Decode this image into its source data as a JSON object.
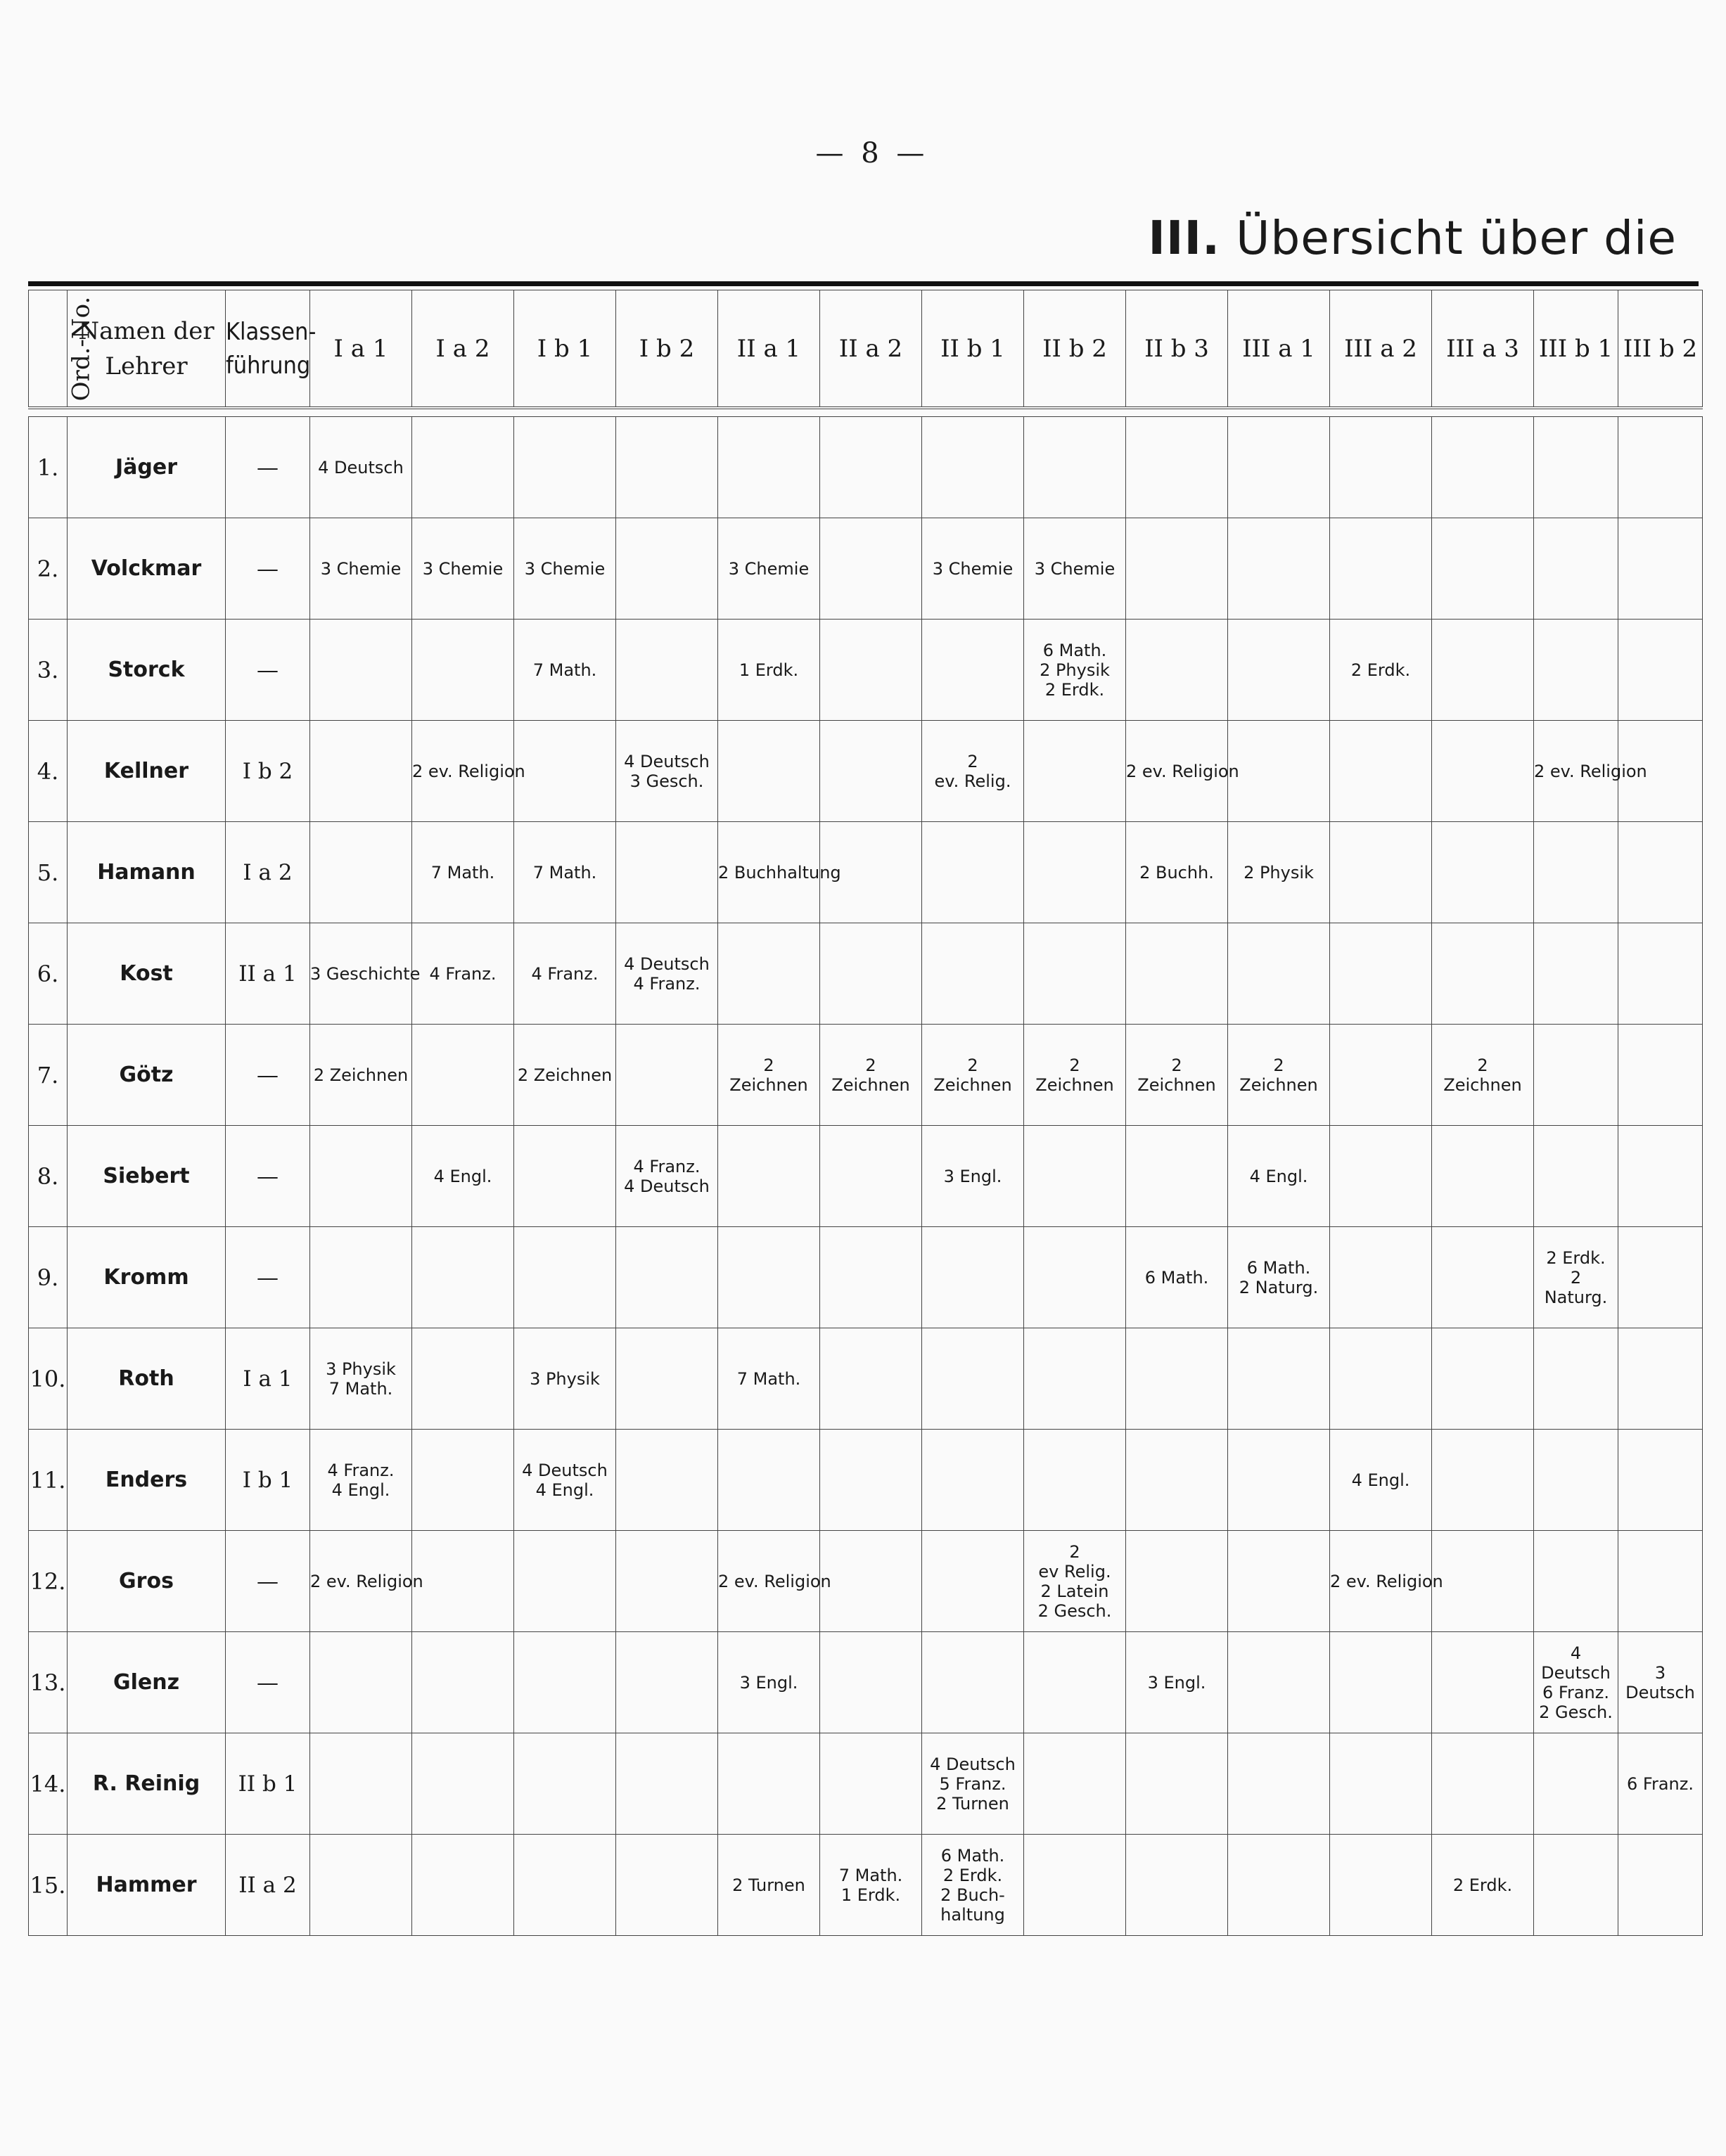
{
  "page_number": "— 8 —",
  "title": {
    "roman": "III.",
    "text": "Übersicht über die"
  },
  "columns": {
    "ord": "Ord.-No.",
    "name": [
      "Namen der",
      "Lehrer"
    ],
    "klasse": [
      "Klassen-",
      "führung"
    ],
    "classes": [
      "I a 1",
      "I a 2",
      "I b 1",
      "I b 2",
      "II a 1",
      "II a 2",
      "II b 1",
      "II b 2",
      "II b 3",
      "III a 1",
      "III a 2",
      "III a 3",
      "III b 1",
      "III b 2"
    ]
  },
  "rows": [
    {
      "num": "1.",
      "name": "Jäger",
      "klasse": "—",
      "cells": [
        [
          "4 Deutsch"
        ],
        [],
        [],
        [],
        [],
        [],
        [],
        [],
        [],
        [],
        [],
        [],
        [],
        []
      ]
    },
    {
      "num": "2.",
      "name": "Volckmar",
      "klasse": "—",
      "cells": [
        [
          "3 Chemie"
        ],
        [
          "3 Chemie"
        ],
        [
          "3 Chemie"
        ],
        [],
        [
          "3 Chemie"
        ],
        [],
        [
          "3 Chemie"
        ],
        [
          "3 Chemie"
        ],
        [],
        [],
        [],
        [],
        [],
        []
      ]
    },
    {
      "num": "3.",
      "name": "Storck",
      "klasse": "—",
      "cells": [
        [],
        [],
        [
          "7 Math."
        ],
        [],
        [
          "1 Erdk."
        ],
        [],
        [],
        [
          "6 Math.",
          "2 Physik",
          "2 Erdk."
        ],
        [],
        [],
        [
          "2 Erdk."
        ],
        [],
        [],
        []
      ]
    },
    {
      "num": "4.",
      "name": "Kellner",
      "klasse": "I b 2",
      "cells": [
        [],
        [
          "2 ev. Religion"
        ],
        [],
        [
          "4 Deutsch",
          "3 Gesch."
        ],
        [],
        [],
        [
          "2",
          "ev. Relig."
        ],
        [],
        [
          "2 ev. Religion"
        ],
        [],
        [],
        [],
        [
          "2 ev. Religion"
        ],
        []
      ]
    },
    {
      "num": "5.",
      "name": "Hamann",
      "klasse": "I a 2",
      "cells": [
        [],
        [
          "7 Math."
        ],
        [
          "7 Math."
        ],
        [],
        [
          "2 Buchhaltung"
        ],
        [],
        [],
        [],
        [
          "2 Buchh."
        ],
        [
          "2 Physik"
        ],
        [],
        [],
        [],
        []
      ]
    },
    {
      "num": "6.",
      "name": "Kost",
      "klasse": "II a 1",
      "cells": [
        [
          "3 Geschichte"
        ],
        [
          "4 Franz."
        ],
        [
          "4 Franz."
        ],
        [
          "4 Deutsch",
          "4 Franz."
        ],
        [],
        [],
        [],
        [],
        [],
        [],
        [],
        [],
        [],
        []
      ]
    },
    {
      "num": "7.",
      "name": "Götz",
      "klasse": "—",
      "cells": [
        [
          "2 Zeichnen"
        ],
        [],
        [
          "2 Zeichnen"
        ],
        [],
        [
          "2",
          "Zeichnen"
        ],
        [
          "2",
          "Zeichnen"
        ],
        [
          "2",
          "Zeichnen"
        ],
        [
          "2",
          "Zeichnen"
        ],
        [
          "2",
          "Zeichnen"
        ],
        [
          "2",
          "Zeichnen"
        ],
        [],
        [
          "2",
          "Zeichnen"
        ],
        [],
        []
      ]
    },
    {
      "num": "8.",
      "name": "Siebert",
      "klasse": "—",
      "cells": [
        [],
        [
          "4 Engl."
        ],
        [],
        [
          "4 Franz.",
          "4 Deutsch"
        ],
        [],
        [],
        [
          "3 Engl."
        ],
        [],
        [],
        [
          "4 Engl."
        ],
        [],
        [],
        [],
        []
      ]
    },
    {
      "num": "9.",
      "name": "Kromm",
      "klasse": "—",
      "cells": [
        [],
        [],
        [],
        [],
        [],
        [],
        [],
        [],
        [
          "6 Math."
        ],
        [
          "6 Math.",
          "2 Naturg."
        ],
        [],
        [],
        [
          "2 Erdk.",
          "2",
          "Naturg."
        ],
        []
      ]
    },
    {
      "num": "10.",
      "name": "Roth",
      "klasse": "I a 1",
      "cells": [
        [
          "3 Physik",
          "7 Math."
        ],
        [],
        [
          "3 Physik"
        ],
        [],
        [
          "7 Math."
        ],
        [],
        [],
        [],
        [],
        [],
        [],
        [],
        [],
        []
      ]
    },
    {
      "num": "11.",
      "name": "Enders",
      "klasse": "I b 1",
      "cells": [
        [
          "4 Franz.",
          "4 Engl."
        ],
        [],
        [
          "4 Deutsch",
          "4 Engl."
        ],
        [],
        [],
        [],
        [],
        [],
        [],
        [],
        [
          "4 Engl."
        ],
        [],
        [],
        []
      ]
    },
    {
      "num": "12.",
      "name": "Gros",
      "klasse": "—",
      "cells": [
        [
          "2 ev. Religion"
        ],
        [],
        [],
        [],
        [
          "2 ev. Religion"
        ],
        [],
        [],
        [
          "2",
          "ev Relig.",
          "2 Latein",
          "2 Gesch."
        ],
        [],
        [],
        [
          "2 ev. Religion"
        ],
        [],
        [],
        []
      ]
    },
    {
      "num": "13.",
      "name": "Glenz",
      "klasse": "—",
      "cells": [
        [],
        [],
        [],
        [],
        [
          "3 Engl."
        ],
        [],
        [],
        [],
        [
          "3 Engl."
        ],
        [],
        [],
        [],
        [
          "4",
          "Deutsch",
          "6 Franz.",
          "2 Gesch."
        ],
        [
          "3",
          "Deutsch"
        ]
      ]
    },
    {
      "num": "14.",
      "name": "R. Reinig",
      "klasse": "II b 1",
      "cells": [
        [],
        [],
        [],
        [],
        [],
        [],
        [
          "4 Deutsch",
          "5 Franz.",
          "2 Turnen"
        ],
        [],
        [],
        [],
        [],
        [],
        [],
        [
          "6 Franz."
        ]
      ]
    },
    {
      "num": "15.",
      "name": "Hammer",
      "klasse": "II a 2",
      "cells": [
        [],
        [],
        [],
        [],
        [
          "2 Turnen"
        ],
        [
          "7 Math.",
          "1 Erdk."
        ],
        [
          "6 Math.",
          "2 Erdk.",
          "2 Buch-",
          "haltung"
        ],
        [],
        [],
        [],
        [],
        [
          "2 Erdk."
        ],
        [],
        []
      ]
    }
  ]
}
